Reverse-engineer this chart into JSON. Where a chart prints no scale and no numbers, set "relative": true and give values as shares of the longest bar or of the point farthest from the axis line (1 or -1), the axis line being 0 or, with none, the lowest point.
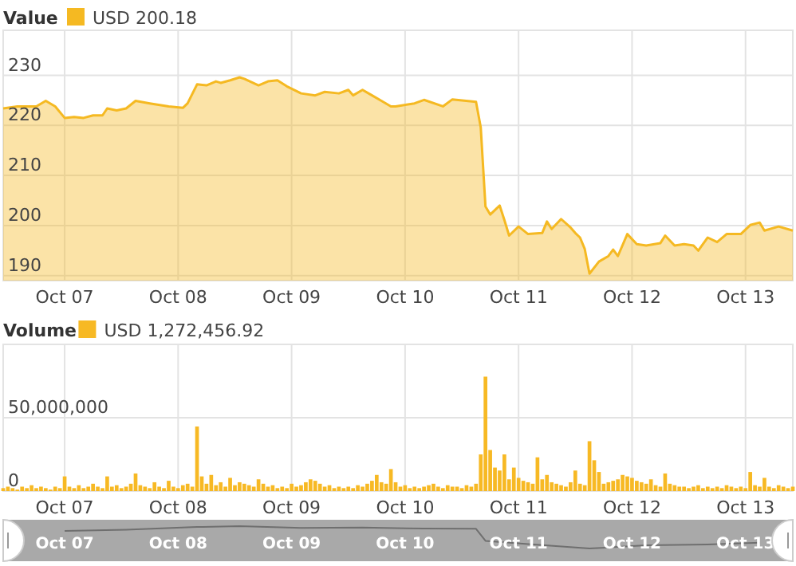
{
  "chart_data": [
    {
      "type": "area",
      "legend_title": "Value",
      "legend": "top left",
      "grid": true,
      "x": [
        "--10-06T11:00",
        "--10-06T14:00",
        "--10-06T18:00",
        "--10-06T20:00",
        "--10-06T22:00",
        "--10-07T00:00",
        "--10-07T02:00",
        "--10-07T04:00",
        "--10-07T06:00",
        "--10-07T08:00",
        "--10-07T09:00",
        "--10-07T11:00",
        "--10-07T13:00",
        "--10-07T15:00",
        "--10-07T18:00",
        "--10-07T22:00",
        "--10-08T01:00",
        "--10-08T02:00",
        "--10-08T04:00",
        "--10-08T06:00",
        "--10-08T08:00",
        "--10-08T09:00",
        "--10-08T11:00",
        "--10-08T13:00",
        "--10-08T14:00",
        "--10-08T17:00",
        "--10-08T19:00",
        "--10-08T21:00",
        "--10-08T23:00",
        "--10-09T02:00",
        "--10-09T05:00",
        "--10-09T07:00",
        "--10-09T10:00",
        "--10-09T12:00",
        "--10-09T13:00",
        "--10-09T15:00",
        "--10-09T17:00",
        "--10-09T19:00",
        "--10-09T21:00",
        "--10-09T22:00",
        "--10-10T02:00",
        "--10-10T04:00",
        "--10-10T08:00",
        "--10-10T10:00",
        "--10-10T15:00",
        "--10-10T16:00",
        "--10-10T17:00",
        "--10-10T18:00",
        "--10-10T20:00",
        "--10-10T21:00",
        "--10-10T22:00",
        "--10-11T00:00",
        "--10-11T02:00",
        "--10-11T05:00",
        "--10-11T06:00",
        "--10-11T07:00",
        "--10-11T09:00",
        "--10-11T11:00",
        "--10-11T12:00",
        "--10-11T13:00",
        "--10-11T14:00",
        "--10-11T15:00",
        "--10-11T17:00",
        "--10-11T19:00",
        "--10-11T20:00",
        "--10-11T21:00",
        "--10-11T23:00",
        "--10-12T01:00",
        "--10-12T03:00",
        "--10-12T06:00",
        "--10-12T07:00",
        "--10-12T09:00",
        "--10-12T11:00",
        "--10-12T13:00",
        "--10-12T14:00",
        "--10-12T16:00",
        "--10-12T18:00",
        "--10-12T20:00",
        "--10-12T23:00",
        "--10-13T01:00",
        "--10-13T03:00",
        "--10-13T04:00",
        "--10-13T07:00",
        "--10-13T10:00"
      ],
      "series": [
        {
          "name": "USD 200.18",
          "color": "#f5b922",
          "values": [
            223.4,
            223.8,
            223.8,
            224.9,
            223.8,
            221.5,
            221.7,
            221.5,
            222,
            222,
            223.4,
            223,
            223.4,
            224.9,
            224.4,
            223.8,
            223.5,
            224.4,
            228.2,
            228,
            228.8,
            228.5,
            229,
            229.6,
            229.3,
            228,
            228.8,
            229,
            227.8,
            226.4,
            226,
            226.7,
            226.4,
            227.1,
            226,
            227.1,
            226,
            224.9,
            223.8,
            223.8,
            224.4,
            225.1,
            223.8,
            225.2,
            224.7,
            219.6,
            203.8,
            202.2,
            204,
            201.1,
            198,
            199.8,
            198.3,
            198.5,
            200.8,
            199.3,
            201.3,
            199.6,
            198.5,
            197.6,
            195.3,
            190.4,
            192.8,
            193.9,
            195.2,
            193.9,
            198.3,
            196.3,
            196,
            196.5,
            198,
            196,
            196.3,
            196,
            195,
            197.6,
            196.7,
            198.3,
            198.3,
            200.1,
            200.6,
            199,
            199.8,
            199
          ]
        }
      ],
      "xlim": [
        "--10-06T11:00",
        "--10-13T10:00"
      ],
      "xticks": [
        {
          "value": "--10-07",
          "label": "Oct 07"
        },
        {
          "value": "--10-08",
          "label": "Oct 08"
        },
        {
          "value": "--10-09",
          "label": "Oct 09"
        },
        {
          "value": "--10-10",
          "label": "Oct 10"
        },
        {
          "value": "--10-11",
          "label": "Oct 11"
        },
        {
          "value": "--10-12",
          "label": "Oct 12"
        },
        {
          "value": "--10-13",
          "label": "Oct 13"
        }
      ],
      "ylim": [
        189,
        239
      ],
      "yticks": [
        190,
        200,
        210,
        220,
        230
      ]
    },
    {
      "type": "bar",
      "legend_title": "Volume",
      "legend": "top left",
      "grid": true,
      "x": [
        "--10-06T11:00",
        "--10-06T12:00",
        "--10-06T13:00",
        "--10-06T14:00",
        "--10-06T15:00",
        "--10-06T16:00",
        "--10-06T17:00",
        "--10-06T18:00",
        "--10-06T19:00",
        "--10-06T20:00",
        "--10-06T21:00",
        "--10-06T22:00",
        "--10-06T23:00",
        "--10-07T00:00",
        "--10-07T01:00",
        "--10-07T02:00",
        "--10-07T03:00",
        "--10-07T04:00",
        "--10-07T05:00",
        "--10-07T06:00",
        "--10-07T07:00",
        "--10-07T08:00",
        "--10-07T09:00",
        "--10-07T10:00",
        "--10-07T11:00",
        "--10-07T12:00",
        "--10-07T13:00",
        "--10-07T14:00",
        "--10-07T15:00",
        "--10-07T16:00",
        "--10-07T17:00",
        "--10-07T18:00",
        "--10-07T19:00",
        "--10-07T20:00",
        "--10-07T21:00",
        "--10-07T22:00",
        "--10-07T23:00",
        "--10-08T00:00",
        "--10-08T01:00",
        "--10-08T02:00",
        "--10-08T03:00",
        "--10-08T04:00",
        "--10-08T05:00",
        "--10-08T06:00",
        "--10-08T07:00",
        "--10-08T08:00",
        "--10-08T09:00",
        "--10-08T10:00",
        "--10-08T11:00",
        "--10-08T12:00",
        "--10-08T13:00",
        "--10-08T14:00",
        "--10-08T15:00",
        "--10-08T16:00",
        "--10-08T17:00",
        "--10-08T18:00",
        "--10-08T19:00",
        "--10-08T20:00",
        "--10-08T21:00",
        "--10-08T22:00",
        "--10-08T23:00",
        "--10-09T00:00",
        "--10-09T01:00",
        "--10-09T02:00",
        "--10-09T03:00",
        "--10-09T04:00",
        "--10-09T05:00",
        "--10-09T06:00",
        "--10-09T07:00",
        "--10-09T08:00",
        "--10-09T09:00",
        "--10-09T10:00",
        "--10-09T11:00",
        "--10-09T12:00",
        "--10-09T13:00",
        "--10-09T14:00",
        "--10-09T15:00",
        "--10-09T16:00",
        "--10-09T17:00",
        "--10-09T18:00",
        "--10-09T19:00",
        "--10-09T20:00",
        "--10-09T21:00",
        "--10-09T22:00",
        "--10-09T23:00",
        "--10-10T00:00",
        "--10-10T01:00",
        "--10-10T02:00",
        "--10-10T03:00",
        "--10-10T04:00",
        "--10-10T05:00",
        "--10-10T06:00",
        "--10-10T07:00",
        "--10-10T08:00",
        "--10-10T09:00",
        "--10-10T10:00",
        "--10-10T11:00",
        "--10-10T12:00",
        "--10-10T13:00",
        "--10-10T14:00",
        "--10-10T15:00",
        "--10-10T16:00",
        "--10-10T17:00",
        "--10-10T18:00",
        "--10-10T19:00",
        "--10-10T20:00",
        "--10-10T21:00",
        "--10-10T22:00",
        "--10-10T23:00",
        "--10-11T00:00",
        "--10-11T01:00",
        "--10-11T02:00",
        "--10-11T03:00",
        "--10-11T04:00",
        "--10-11T05:00",
        "--10-11T06:00",
        "--10-11T07:00",
        "--10-11T08:00",
        "--10-11T09:00",
        "--10-11T10:00",
        "--10-11T11:00",
        "--10-11T12:00",
        "--10-11T13:00",
        "--10-11T14:00",
        "--10-11T15:00",
        "--10-11T16:00",
        "--10-11T17:00",
        "--10-11T18:00",
        "--10-11T19:00",
        "--10-11T20:00",
        "--10-11T21:00",
        "--10-11T22:00",
        "--10-11T23:00",
        "--10-12T00:00",
        "--10-12T01:00",
        "--10-12T02:00",
        "--10-12T03:00",
        "--10-12T04:00",
        "--10-12T05:00",
        "--10-12T06:00",
        "--10-12T07:00",
        "--10-12T08:00",
        "--10-12T09:00",
        "--10-12T10:00",
        "--10-12T11:00",
        "--10-12T12:00",
        "--10-12T13:00",
        "--10-12T14:00",
        "--10-12T15:00",
        "--10-12T16:00",
        "--10-12T17:00",
        "--10-12T18:00",
        "--10-12T19:00",
        "--10-12T20:00",
        "--10-12T21:00",
        "--10-12T22:00",
        "--10-12T23:00",
        "--10-13T00:00",
        "--10-13T01:00",
        "--10-13T02:00",
        "--10-13T03:00",
        "--10-13T04:00",
        "--10-13T05:00",
        "--10-13T06:00",
        "--10-13T07:00",
        "--10-13T08:00",
        "--10-13T09:00",
        "--10-13T10:00"
      ],
      "series": [
        {
          "name": "USD 1,272,456.92",
          "color": "#f7b924",
          "values": [
            2000000.0,
            3000000.0,
            2000000.0,
            1000000.0,
            3000000.0,
            2000000.0,
            4000000.0,
            2000000.0,
            3000000.0,
            2000000.0,
            1000000.0,
            3000000.0,
            2000000.0,
            10000000.0,
            3000000.0,
            2000000.0,
            4000000.0,
            2000000.0,
            3000000.0,
            5000000.0,
            3000000.0,
            2000000.0,
            10000000.0,
            3000000.0,
            4000000.0,
            2000000.0,
            3000000.0,
            5000000.0,
            12000000.0,
            4000000.0,
            3000000.0,
            2000000.0,
            6000000.0,
            3000000.0,
            2000000.0,
            7000000.0,
            3000000.0,
            2000000.0,
            4000000.0,
            5000000.0,
            3000000.0,
            44000000.0,
            10000000.0,
            5000000.0,
            11000000.0,
            4000000.0,
            6000000.0,
            3000000.0,
            9000000.0,
            4000000.0,
            6000000.0,
            5000000.0,
            4000000.0,
            3000000.0,
            8000000.0,
            5000000.0,
            3000000.0,
            4000000.0,
            2000000.0,
            3000000.0,
            2000000.0,
            5000000.0,
            3000000.0,
            4000000.0,
            6000000.0,
            8000000.0,
            7000000.0,
            5000000.0,
            3000000.0,
            4000000.0,
            2000000.0,
            3000000.0,
            2000000.0,
            3000000.0,
            2000000.0,
            4000000.0,
            3000000.0,
            5000000.0,
            7000000.0,
            11000000.0,
            6000000.0,
            5000000.0,
            15000000.0,
            6000000.0,
            3000000.0,
            4000000.0,
            2000000.0,
            3000000.0,
            2000000.0,
            3000000.0,
            4000000.0,
            5000000.0,
            3000000.0,
            2000000.0,
            4000000.0,
            3000000.0,
            3000000.0,
            2000000.0,
            4000000.0,
            3000000.0,
            5000000.0,
            25000000.0,
            78000000.0,
            28000000.0,
            16000000.0,
            14000000.0,
            25000000.0,
            8000000.0,
            16000000.0,
            9000000.0,
            7000000.0,
            6000000.0,
            5000000.0,
            23000000.0,
            8000000.0,
            11000000.0,
            6000000.0,
            5000000.0,
            4000000.0,
            3000000.0,
            6000000.0,
            14000000.0,
            5000000.0,
            4000000.0,
            34000000.0,
            21000000.0,
            13000000.0,
            5000000.0,
            6000000.0,
            7000000.0,
            8000000.0,
            11000000.0,
            10000000.0,
            9000000.0,
            7000000.0,
            6000000.0,
            5000000.0,
            8000000.0,
            4000000.0,
            3000000.0,
            12000000.0,
            5000000.0,
            4000000.0,
            3000000.0,
            3000000.0,
            2000000.0,
            3000000.0,
            4000000.0,
            2000000.0,
            3000000.0,
            2000000.0,
            3000000.0,
            2000000.0,
            4000000.0,
            3000000.0,
            2000000.0,
            3000000.0,
            2000000.0,
            13000000.0,
            4000000.0,
            3000000.0,
            9000000.0,
            3000000.0,
            2000000.0,
            4000000.0,
            3000000.0,
            2000000.0,
            3000000.0
          ]
        }
      ],
      "xlim": [
        "--10-06T11:00",
        "--10-13T10:00"
      ],
      "xticks": [
        {
          "value": "--10-07",
          "label": "Oct 07"
        },
        {
          "value": "--10-08",
          "label": "Oct 08"
        },
        {
          "value": "--10-09",
          "label": "Oct 09"
        },
        {
          "value": "--10-10",
          "label": "Oct 10"
        },
        {
          "value": "--10-11",
          "label": "Oct 11"
        },
        {
          "value": "--10-12",
          "label": "Oct 12"
        },
        {
          "value": "--10-13",
          "label": "Oct 13"
        }
      ],
      "ylim": [
        0,
        100000000
      ],
      "yticks": [
        {
          "value": 0,
          "label": "0"
        },
        {
          "value": 50000000,
          "label": "50,000,000"
        }
      ]
    },
    {
      "type": "line",
      "tick_labels": "x",
      "x": [
        "--10-07T00:00",
        "--10-07T13:00",
        "--10-08T04:00",
        "--10-08T13:00",
        "--10-09T02:00",
        "--10-09T15:00",
        "--10-10T04:00",
        "--10-10T15:00",
        "--10-10T17:00",
        "--10-11T02:00",
        "--10-11T15:00",
        "--10-12T03:00",
        "--10-12T16:00",
        "--10-13T03:00"
      ],
      "relative": true,
      "series": [
        {
          "color": "#6f6f6f",
          "values": [
            0.79,
            0.84,
            0.96,
            1,
            0.92,
            0.94,
            0.89,
            0.88,
            0.34,
            0.2,
            0,
            0.14,
            0.18,
            0.26
          ]
        }
      ],
      "xlim": [
        "--10-06T11:00",
        "--10-13T10:00"
      ],
      "xticks": [
        {
          "value": "--10-07",
          "label": "Oct 07"
        },
        {
          "value": "--10-08",
          "label": "Oct 08"
        },
        {
          "value": "--10-09",
          "label": "Oct 09"
        },
        {
          "value": "--10-10",
          "label": "Oct 10"
        },
        {
          "value": "--10-11",
          "label": "Oct 11"
        },
        {
          "value": "--10-12",
          "label": "Oct 12"
        },
        {
          "value": "--10-13",
          "label": "Oct 13"
        }
      ]
    }
  ]
}
